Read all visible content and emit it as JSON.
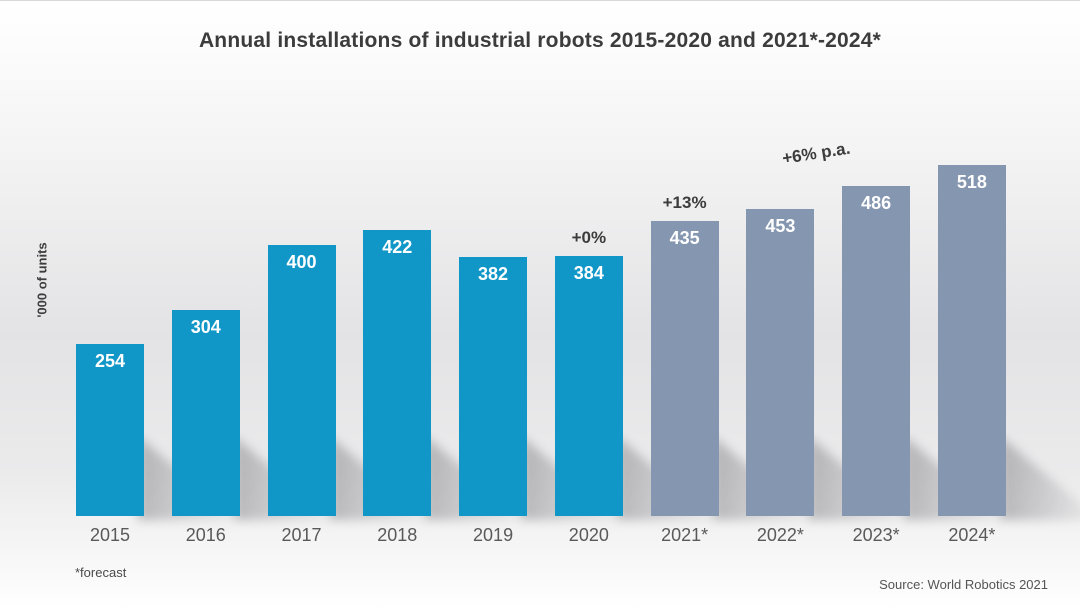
{
  "title": "Annual installations of industrial robots 2015-2020 and 2021*-2024*",
  "ylabel": "'000 of units",
  "footnote": "*forecast",
  "source": "Source: World Robotics 2021",
  "colors": {
    "actual_bar": "#1097c8",
    "forecast_bar": "#8596b0",
    "annotation_text": "#3c3c3c",
    "axis_text": "#595959",
    "value_label": "#ffffff"
  },
  "chart_data": {
    "type": "bar",
    "title": "Annual installations of industrial robots 2015-2020 and 2021*-2024*",
    "xlabel": "",
    "ylabel": "'000 of units",
    "categories": [
      "2015",
      "2016",
      "2017",
      "2018",
      "2019",
      "2020",
      "2021*",
      "2022*",
      "2023*",
      "2024*"
    ],
    "values": [
      254,
      304,
      400,
      422,
      382,
      384,
      435,
      453,
      486,
      518
    ],
    "series_types": [
      "actual",
      "actual",
      "actual",
      "actual",
      "actual",
      "actual",
      "forecast",
      "forecast",
      "forecast",
      "forecast"
    ],
    "ylim": [
      0,
      560
    ],
    "grid": false,
    "legend": "none",
    "value_labels": "inside-top",
    "annotations": [
      {
        "text": "+0%",
        "bar_index": 5,
        "style": "ann-center",
        "rotation": 0
      },
      {
        "text": "+13%",
        "bar_index": 6,
        "style": "ann-center",
        "rotation": 0
      },
      {
        "text": "+6% p.a.",
        "bar_index": 7,
        "style": "ann-rotated",
        "rotation": -9
      }
    ]
  }
}
